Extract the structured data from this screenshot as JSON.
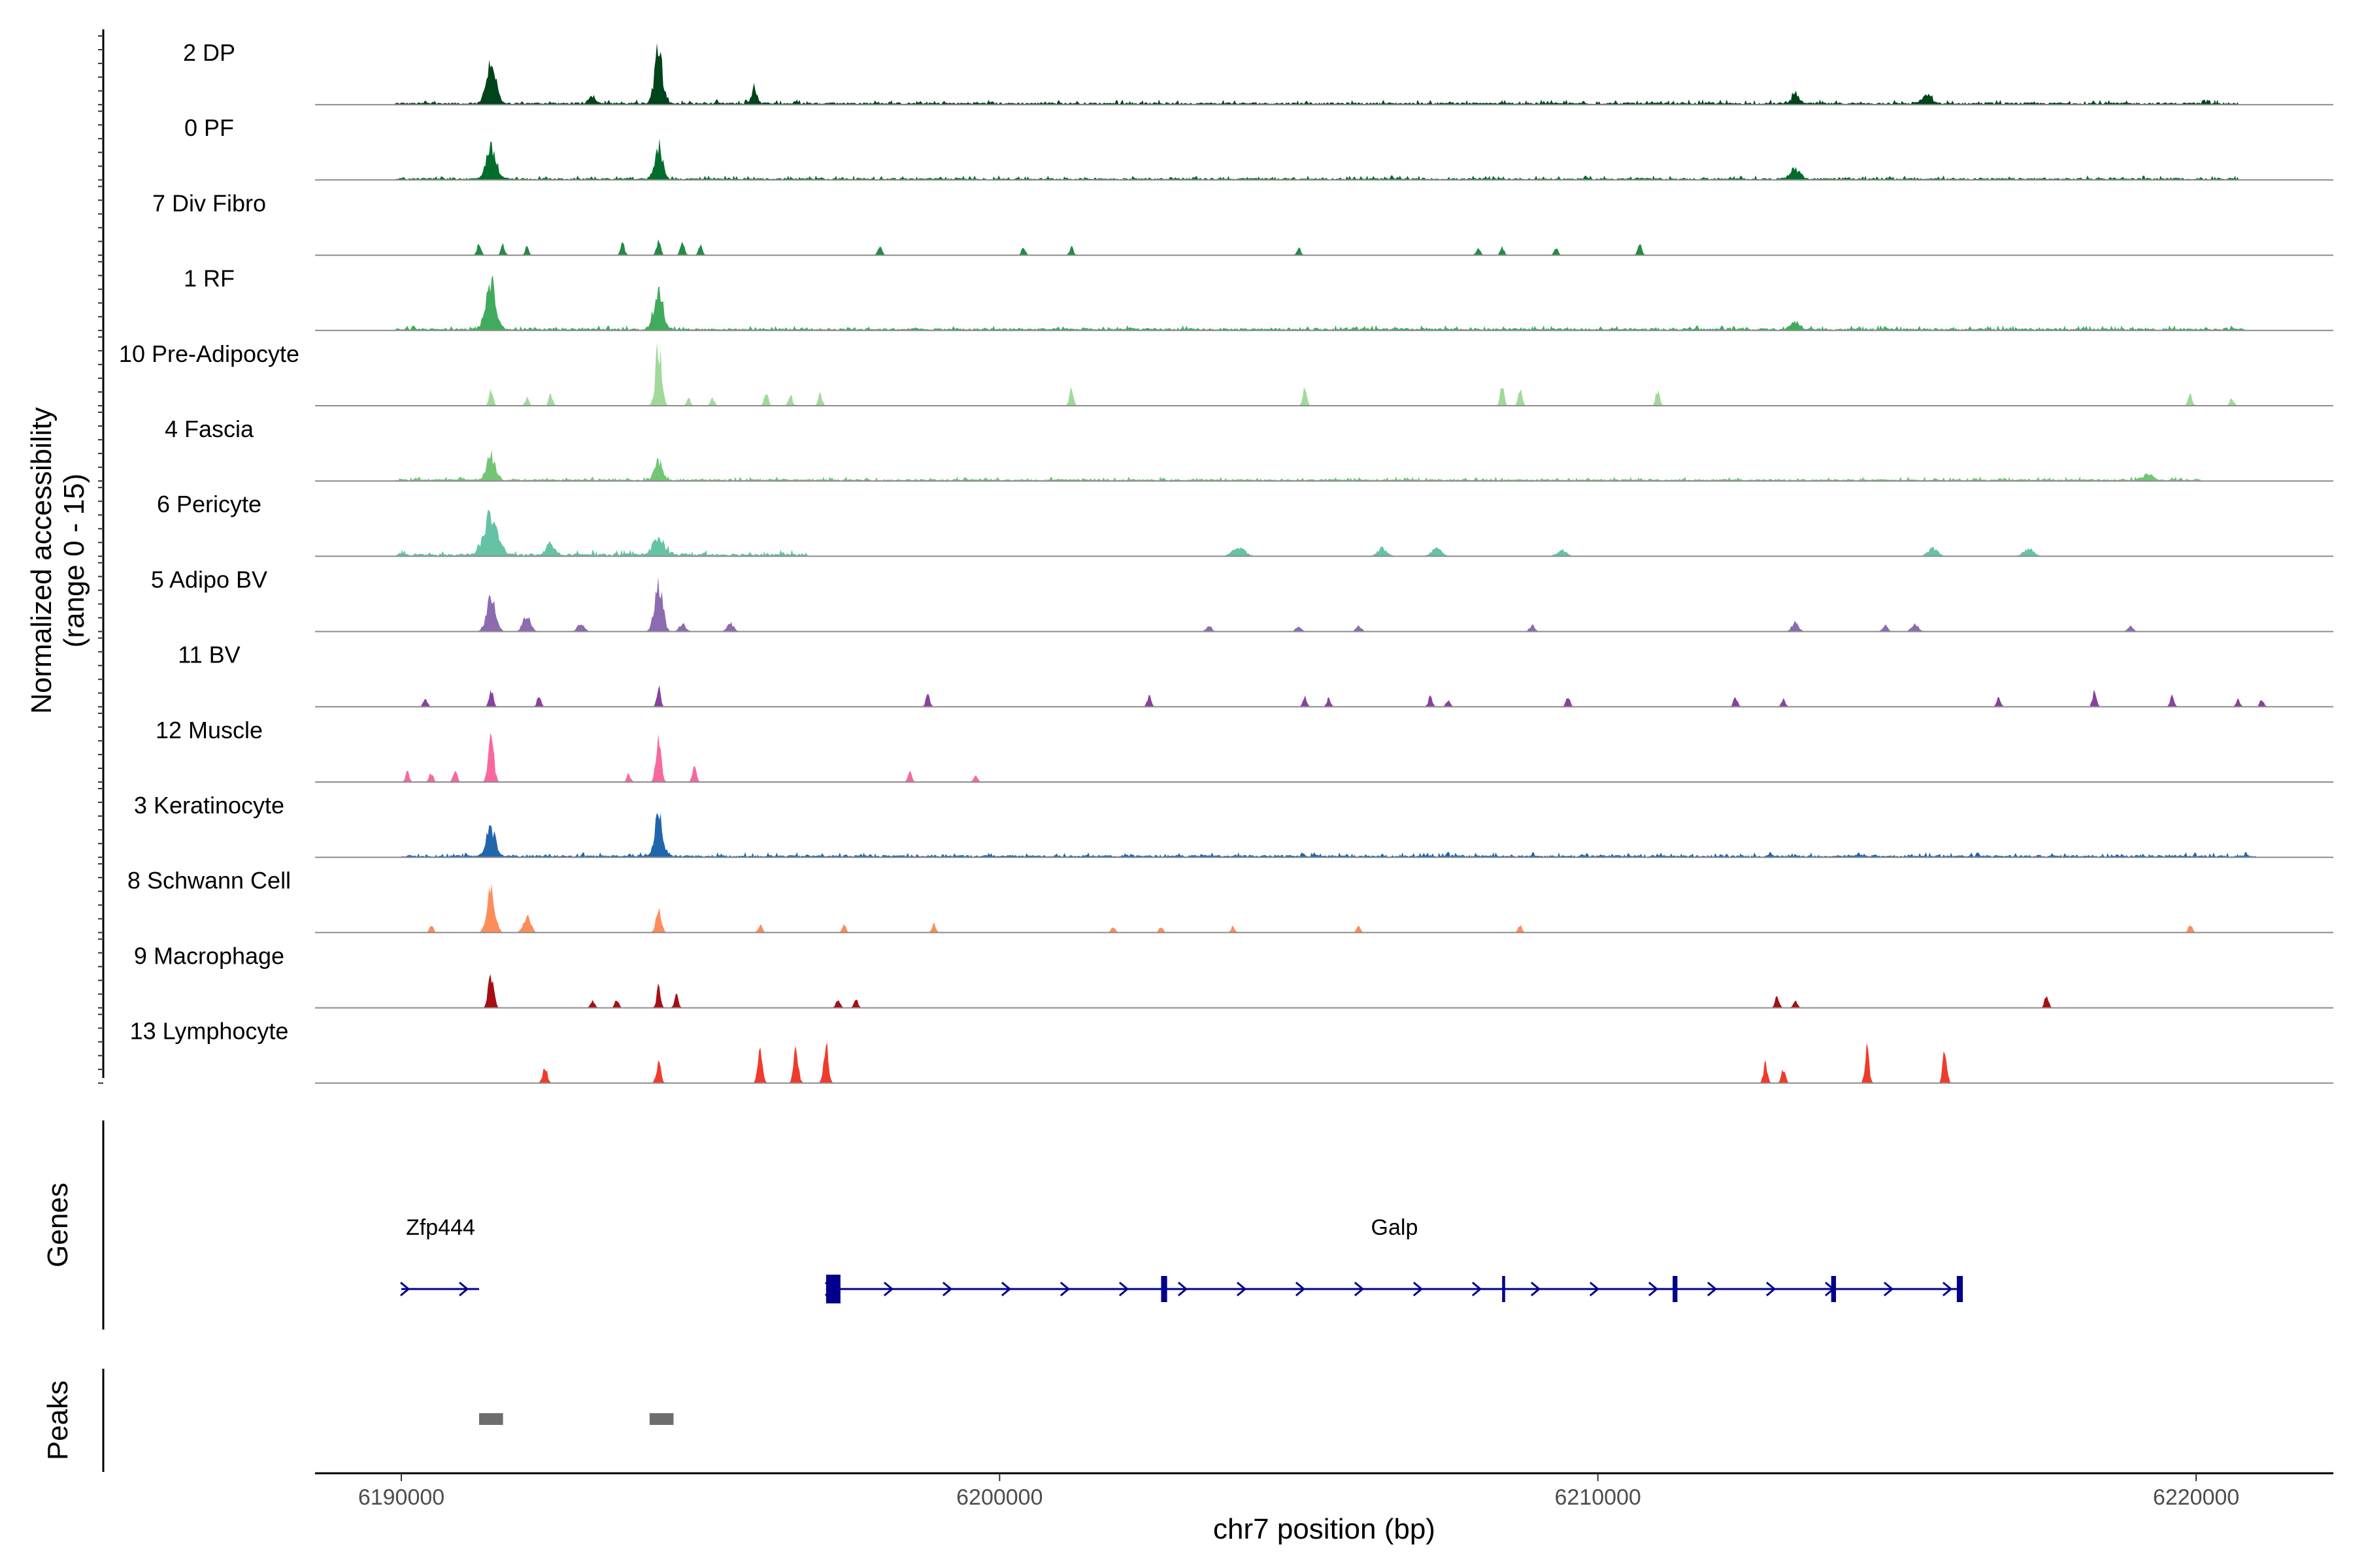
{
  "chart_data": {
    "type": "area",
    "title": "",
    "ylabel": "Normalized accessibility",
    "ylabel_range": "(range 0 - 15)",
    "ylim": [
      0,
      15
    ],
    "xlabel": "chr7 position (bp)",
    "xlim": [
      6188500,
      6222800
    ],
    "xticks": [
      6190000,
      6200000,
      6210000,
      6220000
    ],
    "xtick_labels": [
      "6190000",
      "6200000",
      "6210000",
      "6220000"
    ],
    "grid": false,
    "tracks": [
      {
        "name": "2 DP",
        "color": "#00441b",
        "noise": 0.35,
        "cov": [
          6189900,
          6220700
        ],
        "peaks": [
          [
            6191500,
            11,
            140
          ],
          [
            6194300,
            13,
            120
          ],
          [
            6195900,
            4,
            80
          ],
          [
            6193200,
            2,
            100
          ],
          [
            6213300,
            2,
            120
          ],
          [
            6215500,
            2,
            150
          ]
        ]
      },
      {
        "name": "0 PF",
        "color": "#006d2c",
        "noise": 0.3,
        "cov": [
          6189900,
          6220700
        ],
        "peaks": [
          [
            6191500,
            8,
            140
          ],
          [
            6194300,
            8,
            120
          ],
          [
            6213300,
            2.5,
            150
          ]
        ]
      },
      {
        "name": "7 Div Fibro",
        "color": "#238b45",
        "noise": 0,
        "cov": [
          0,
          0
        ],
        "peaks": [
          [
            6191300,
            3,
            60
          ],
          [
            6191700,
            2.5,
            60
          ],
          [
            6192100,
            2,
            60
          ],
          [
            6193700,
            3,
            60
          ],
          [
            6194300,
            4,
            60
          ],
          [
            6194700,
            4,
            60
          ],
          [
            6195000,
            2.5,
            60
          ],
          [
            6198000,
            2.5,
            60
          ],
          [
            6200400,
            2,
            60
          ],
          [
            6201200,
            2,
            60
          ],
          [
            6205000,
            2,
            60
          ],
          [
            6208000,
            2,
            60
          ],
          [
            6208400,
            2,
            60
          ],
          [
            6209300,
            2,
            60
          ],
          [
            6210700,
            3,
            60
          ]
        ]
      },
      {
        "name": "1 RF",
        "color": "#41ab5d",
        "noise": 0.35,
        "cov": [
          6189900,
          6220800
        ],
        "peaks": [
          [
            6191500,
            11,
            150
          ],
          [
            6194300,
            10,
            130
          ],
          [
            6213300,
            2,
            120
          ]
        ]
      },
      {
        "name": "10 Pre-Adipocyte",
        "color": "#a1d99b",
        "noise": 0,
        "cov": [
          0,
          0
        ],
        "peaks": [
          [
            6191500,
            4,
            60
          ],
          [
            6192100,
            2,
            60
          ],
          [
            6192500,
            3,
            60
          ],
          [
            6194300,
            15,
            90
          ],
          [
            6194800,
            2,
            60
          ],
          [
            6195200,
            2,
            60
          ],
          [
            6196100,
            3,
            60
          ],
          [
            6196500,
            3,
            60
          ],
          [
            6197000,
            3,
            60
          ],
          [
            6201200,
            4,
            60
          ],
          [
            6205100,
            4,
            60
          ],
          [
            6208400,
            5,
            60
          ],
          [
            6208700,
            4,
            60
          ],
          [
            6211000,
            4,
            60
          ],
          [
            6219900,
            3,
            60
          ],
          [
            6220600,
            2,
            60
          ]
        ]
      },
      {
        "name": "4 Fascia",
        "color": "#74c476",
        "noise": 0.3,
        "cov": [
          6189900,
          6220100
        ],
        "peaks": [
          [
            6191500,
            6,
            130
          ],
          [
            6194300,
            5,
            120
          ],
          [
            6219200,
            1.5,
            150
          ]
        ]
      },
      {
        "name": "6 Pericyte",
        "color": "#66c2a4",
        "noise": 0.45,
        "cov": [
          6189900,
          6196800
        ],
        "peaks": [
          [
            6191500,
            10,
            200
          ],
          [
            6192500,
            3,
            120
          ],
          [
            6194300,
            4,
            180
          ],
          [
            6204000,
            2,
            200
          ],
          [
            6206400,
            2,
            150
          ],
          [
            6207300,
            2,
            150
          ],
          [
            6209400,
            1.5,
            150
          ],
          [
            6215600,
            2,
            150
          ],
          [
            6217200,
            2,
            150
          ]
        ]
      },
      {
        "name": "5 Adipo BV",
        "color": "#8c6bb1",
        "noise": 0,
        "cov": [
          0,
          0
        ],
        "peaks": [
          [
            6191500,
            8,
            140
          ],
          [
            6192100,
            4,
            120
          ],
          [
            6193000,
            2,
            100
          ],
          [
            6194300,
            13,
            120
          ],
          [
            6194700,
            2,
            100
          ],
          [
            6195500,
            2,
            100
          ],
          [
            6203500,
            1.5,
            80
          ],
          [
            6205000,
            1.5,
            80
          ],
          [
            6206000,
            1.5,
            80
          ],
          [
            6208900,
            1.5,
            80
          ],
          [
            6213300,
            2.5,
            100
          ],
          [
            6214800,
            1.5,
            80
          ],
          [
            6215300,
            2,
            100
          ],
          [
            6218900,
            1.5,
            80
          ]
        ]
      },
      {
        "name": "11 BV",
        "color": "#88419d",
        "noise": 0,
        "cov": [
          0,
          0
        ],
        "peaks": [
          [
            6190400,
            2.5,
            60
          ],
          [
            6191500,
            5,
            60
          ],
          [
            6192300,
            2.5,
            60
          ],
          [
            6194300,
            5,
            60
          ],
          [
            6198800,
            3,
            60
          ],
          [
            6202500,
            2.5,
            60
          ],
          [
            6205100,
            2.5,
            60
          ],
          [
            6205500,
            2,
            60
          ],
          [
            6207200,
            2.5,
            60
          ],
          [
            6207500,
            2,
            60
          ],
          [
            6209500,
            2.5,
            60
          ],
          [
            6212300,
            2.5,
            60
          ],
          [
            6213100,
            2,
            60
          ],
          [
            6216700,
            2.5,
            60
          ],
          [
            6218300,
            4,
            60
          ],
          [
            6219600,
            3,
            60
          ],
          [
            6220700,
            2,
            60
          ],
          [
            6221100,
            2,
            60
          ]
        ]
      },
      {
        "name": "12 Muscle",
        "color": "#f768a1",
        "noise": 0,
        "cov": [
          0,
          0
        ],
        "peaks": [
          [
            6190100,
            2.5,
            60
          ],
          [
            6190500,
            2.5,
            60
          ],
          [
            6190900,
            3,
            60
          ],
          [
            6191500,
            13,
            80
          ],
          [
            6193800,
            2,
            60
          ],
          [
            6194300,
            10,
            80
          ],
          [
            6194900,
            5,
            60
          ],
          [
            6198500,
            2.5,
            60
          ],
          [
            6199600,
            2,
            60
          ]
        ]
      },
      {
        "name": "3 Keratinocyte",
        "color": "#2166ac",
        "noise": 0.35,
        "cov": [
          6190000,
          6221000
        ],
        "peaks": [
          [
            6191500,
            7,
            130
          ],
          [
            6194300,
            10,
            120
          ]
        ]
      },
      {
        "name": "8 Schwann Cell",
        "color": "#fc8d59",
        "noise": 0,
        "cov": [
          0,
          0
        ],
        "peaks": [
          [
            6190500,
            2,
            60
          ],
          [
            6191500,
            11,
            120
          ],
          [
            6192100,
            4,
            110
          ],
          [
            6194300,
            6,
            80
          ],
          [
            6196000,
            2,
            60
          ],
          [
            6197400,
            2,
            60
          ],
          [
            6198900,
            2,
            60
          ],
          [
            6201900,
            1.5,
            60
          ],
          [
            6202700,
            1.5,
            60
          ],
          [
            6203900,
            1.5,
            60
          ],
          [
            6206000,
            1.5,
            60
          ],
          [
            6208700,
            2,
            60
          ],
          [
            6219900,
            2,
            60
          ]
        ]
      },
      {
        "name": "9 Macrophage",
        "color": "#a50f15",
        "noise": 0,
        "cov": [
          0,
          0
        ],
        "peaks": [
          [
            6191500,
            9,
            80
          ],
          [
            6193200,
            2,
            60
          ],
          [
            6193600,
            2,
            60
          ],
          [
            6194300,
            5,
            60
          ],
          [
            6194600,
            3,
            60
          ],
          [
            6197300,
            2.5,
            60
          ],
          [
            6197600,
            2.5,
            60
          ],
          [
            6213000,
            3,
            60
          ],
          [
            6213300,
            2,
            60
          ],
          [
            6217500,
            3,
            60
          ]
        ]
      },
      {
        "name": "13 Lymphocyte",
        "color": "#ef3b2c",
        "noise": 0,
        "cov": [
          0,
          0
        ],
        "peaks": [
          [
            6192400,
            4,
            70
          ],
          [
            6194300,
            5,
            70
          ],
          [
            6196000,
            10,
            70
          ],
          [
            6196600,
            9,
            70
          ],
          [
            6197100,
            10,
            70
          ],
          [
            6212800,
            5,
            60
          ],
          [
            6213100,
            4,
            60
          ],
          [
            6214500,
            9,
            60
          ],
          [
            6215800,
            9,
            60
          ]
        ]
      }
    ],
    "genes": [
      {
        "name": "Zfp444",
        "start": 6190000,
        "end": 6191300,
        "strand": "+",
        "exons": []
      },
      {
        "name": "Galp",
        "start": 6197100,
        "end": 6216100,
        "strand": "+",
        "exons": [
          [
            6197100,
            6197300
          ],
          [
            6202700,
            6202800
          ],
          [
            6208400,
            6208450
          ],
          [
            6211250,
            6211330
          ],
          [
            6213900,
            6213980
          ],
          [
            6216000,
            6216100
          ]
        ]
      }
    ],
    "gene_color": "#00008b",
    "peaks_track": [
      [
        6191300,
        6191700
      ],
      [
        6194150,
        6194550
      ]
    ],
    "peak_color": "#6e6e6e",
    "panel_labels": {
      "genes": "Genes",
      "peaks": "Peaks"
    }
  }
}
